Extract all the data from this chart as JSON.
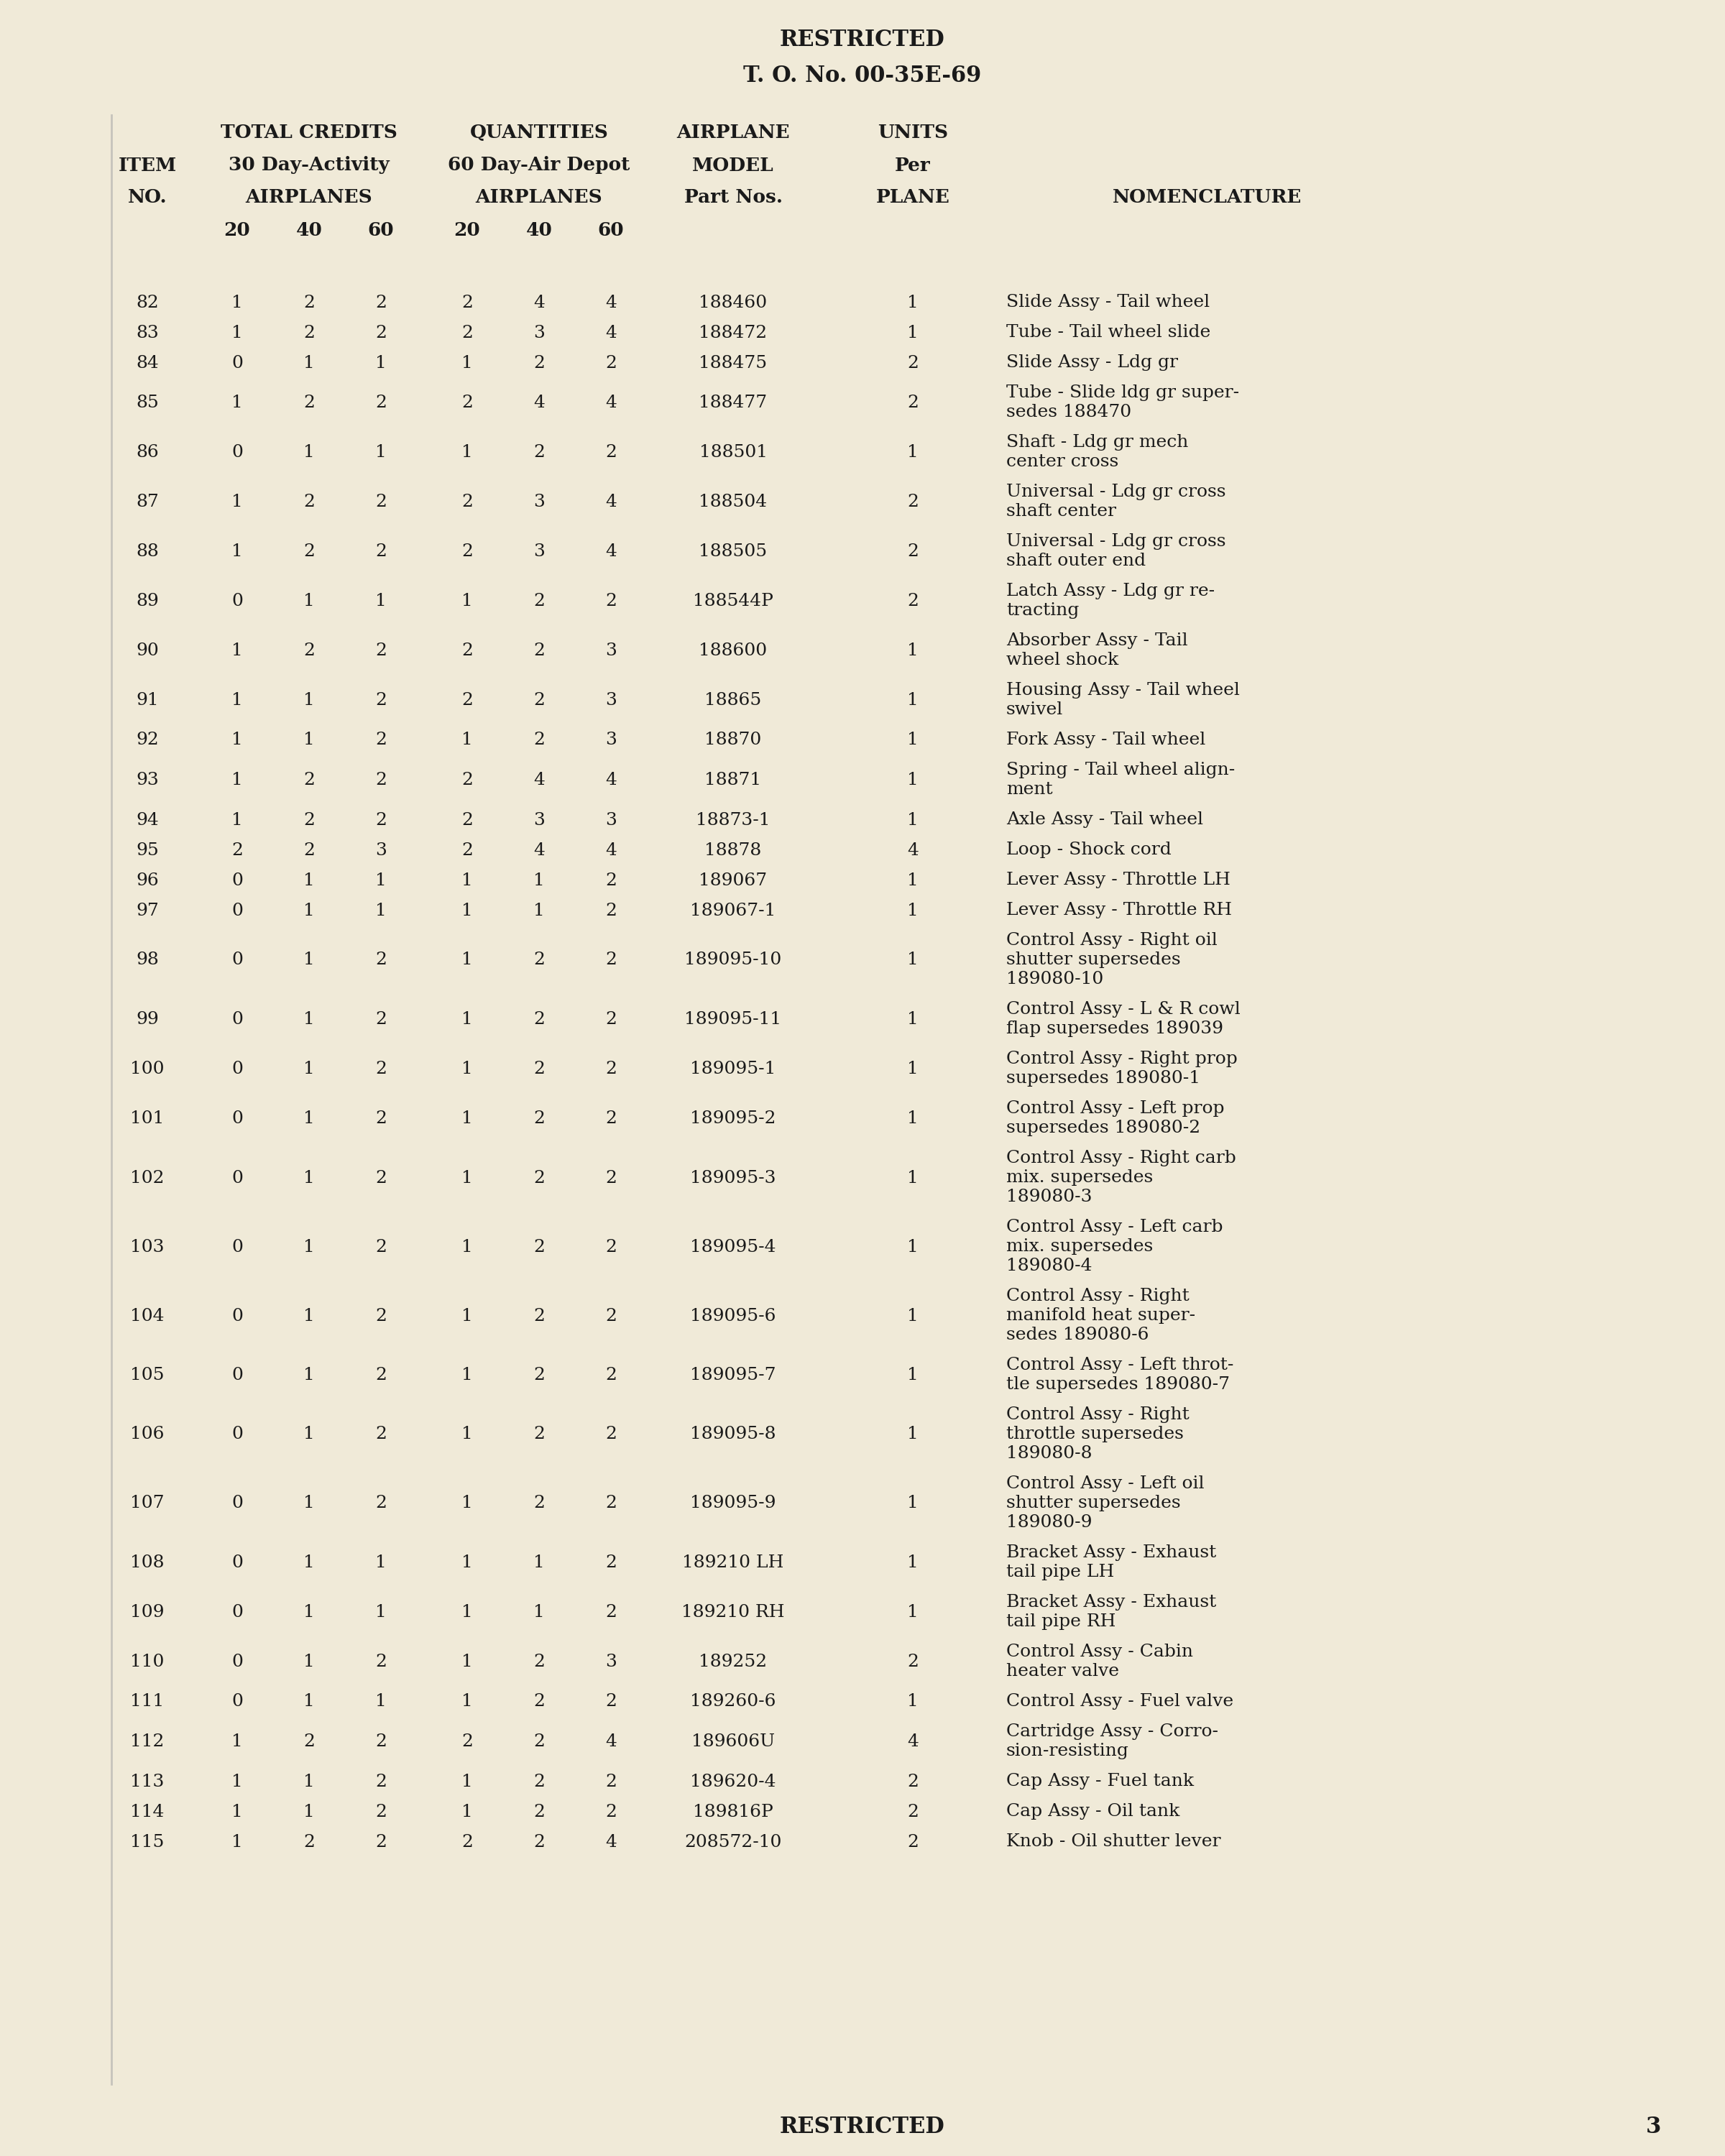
{
  "header_line1": "RESTRICTED",
  "header_line2": "T. O. No. 00-35E-69",
  "rows": [
    {
      "item": "82",
      "tc20": "1",
      "tc40": "2",
      "tc60": "2",
      "q20": "2",
      "q40": "4",
      "q60": "4",
      "part": "188460",
      "units": "1",
      "nomenclature": [
        "Slide Assy - Tail wheel"
      ]
    },
    {
      "item": "83",
      "tc20": "1",
      "tc40": "2",
      "tc60": "2",
      "q20": "2",
      "q40": "3",
      "q60": "4",
      "part": "188472",
      "units": "1",
      "nomenclature": [
        "Tube - Tail wheel slide"
      ]
    },
    {
      "item": "84",
      "tc20": "0",
      "tc40": "1",
      "tc60": "1",
      "q20": "1",
      "q40": "2",
      "q60": "2",
      "part": "188475",
      "units": "2",
      "nomenclature": [
        "Slide Assy - Ldg gr"
      ]
    },
    {
      "item": "85",
      "tc20": "1",
      "tc40": "2",
      "tc60": "2",
      "q20": "2",
      "q40": "4",
      "q60": "4",
      "part": "188477",
      "units": "2",
      "nomenclature": [
        "Tube - Slide ldg gr super-",
        "sedes 188470"
      ]
    },
    {
      "item": "86",
      "tc20": "0",
      "tc40": "1",
      "tc60": "1",
      "q20": "1",
      "q40": "2",
      "q60": "2",
      "part": "188501",
      "units": "1",
      "nomenclature": [
        "Shaft - Ldg gr mech",
        "center cross"
      ]
    },
    {
      "item": "87",
      "tc20": "1",
      "tc40": "2",
      "tc60": "2",
      "q20": "2",
      "q40": "3",
      "q60": "4",
      "part": "188504",
      "units": "2",
      "nomenclature": [
        "Universal - Ldg gr cross",
        "shaft center"
      ]
    },
    {
      "item": "88",
      "tc20": "1",
      "tc40": "2",
      "tc60": "2",
      "q20": "2",
      "q40": "3",
      "q60": "4",
      "part": "188505",
      "units": "2",
      "nomenclature": [
        "Universal - Ldg gr cross",
        "shaft outer end"
      ]
    },
    {
      "item": "89",
      "tc20": "0",
      "tc40": "1",
      "tc60": "1",
      "q20": "1",
      "q40": "2",
      "q60": "2",
      "part": "188544P",
      "units": "2",
      "nomenclature": [
        "Latch Assy - Ldg gr re-",
        "tracting"
      ]
    },
    {
      "item": "90",
      "tc20": "1",
      "tc40": "2",
      "tc60": "2",
      "q20": "2",
      "q40": "2",
      "q60": "3",
      "part": "188600",
      "units": "1",
      "nomenclature": [
        "Absorber Assy - Tail",
        "wheel shock"
      ]
    },
    {
      "item": "91",
      "tc20": "1",
      "tc40": "1",
      "tc60": "2",
      "q20": "2",
      "q40": "2",
      "q60": "3",
      "part": "18865",
      "units": "1",
      "nomenclature": [
        "Housing Assy - Tail wheel",
        "swivel"
      ]
    },
    {
      "item": "92",
      "tc20": "1",
      "tc40": "1",
      "tc60": "2",
      "q20": "1",
      "q40": "2",
      "q60": "3",
      "part": "18870",
      "units": "1",
      "nomenclature": [
        "Fork Assy - Tail wheel"
      ]
    },
    {
      "item": "93",
      "tc20": "1",
      "tc40": "2",
      "tc60": "2",
      "q20": "2",
      "q40": "4",
      "q60": "4",
      "part": "18871",
      "units": "1",
      "nomenclature": [
        "Spring - Tail wheel align-",
        "ment"
      ]
    },
    {
      "item": "94",
      "tc20": "1",
      "tc40": "2",
      "tc60": "2",
      "q20": "2",
      "q40": "3",
      "q60": "3",
      "part": "18873-1",
      "units": "1",
      "nomenclature": [
        "Axle Assy - Tail wheel"
      ]
    },
    {
      "item": "95",
      "tc20": "2",
      "tc40": "2",
      "tc60": "3",
      "q20": "2",
      "q40": "4",
      "q60": "4",
      "part": "18878",
      "units": "4",
      "nomenclature": [
        "Loop - Shock cord"
      ]
    },
    {
      "item": "96",
      "tc20": "0",
      "tc40": "1",
      "tc60": "1",
      "q20": "1",
      "q40": "1",
      "q60": "2",
      "part": "189067",
      "units": "1",
      "nomenclature": [
        "Lever Assy - Throttle LH"
      ]
    },
    {
      "item": "97",
      "tc20": "0",
      "tc40": "1",
      "tc60": "1",
      "q20": "1",
      "q40": "1",
      "q60": "2",
      "part": "189067-1",
      "units": "1",
      "nomenclature": [
        "Lever Assy - Throttle RH"
      ]
    },
    {
      "item": "98",
      "tc20": "0",
      "tc40": "1",
      "tc60": "2",
      "q20": "1",
      "q40": "2",
      "q60": "2",
      "part": "189095-10",
      "units": "1",
      "nomenclature": [
        "Control Assy - Right oil",
        "shutter supersedes",
        "189080-10"
      ]
    },
    {
      "item": "99",
      "tc20": "0",
      "tc40": "1",
      "tc60": "2",
      "q20": "1",
      "q40": "2",
      "q60": "2",
      "part": "189095-11",
      "units": "1",
      "nomenclature": [
        "Control Assy - L & R cowl",
        "flap supersedes 189039"
      ]
    },
    {
      "item": "100",
      "tc20": "0",
      "tc40": "1",
      "tc60": "2",
      "q20": "1",
      "q40": "2",
      "q60": "2",
      "part": "189095-1",
      "units": "1",
      "nomenclature": [
        "Control Assy - Right prop",
        "supersedes 189080-1"
      ]
    },
    {
      "item": "101",
      "tc20": "0",
      "tc40": "1",
      "tc60": "2",
      "q20": "1",
      "q40": "2",
      "q60": "2",
      "part": "189095-2",
      "units": "1",
      "nomenclature": [
        "Control Assy - Left prop",
        "supersedes 189080-2"
      ]
    },
    {
      "item": "102",
      "tc20": "0",
      "tc40": "1",
      "tc60": "2",
      "q20": "1",
      "q40": "2",
      "q60": "2",
      "part": "189095-3",
      "units": "1",
      "nomenclature": [
        "Control Assy - Right carb",
        "mix. supersedes",
        "189080-3"
      ]
    },
    {
      "item": "103",
      "tc20": "0",
      "tc40": "1",
      "tc60": "2",
      "q20": "1",
      "q40": "2",
      "q60": "2",
      "part": "189095-4",
      "units": "1",
      "nomenclature": [
        "Control Assy - Left carb",
        "mix. supersedes",
        "189080-4"
      ]
    },
    {
      "item": "104",
      "tc20": "0",
      "tc40": "1",
      "tc60": "2",
      "q20": "1",
      "q40": "2",
      "q60": "2",
      "part": "189095-6",
      "units": "1",
      "nomenclature": [
        "Control Assy - Right",
        "manifold heat super-",
        "sedes 189080-6"
      ]
    },
    {
      "item": "105",
      "tc20": "0",
      "tc40": "1",
      "tc60": "2",
      "q20": "1",
      "q40": "2",
      "q60": "2",
      "part": "189095-7",
      "units": "1",
      "nomenclature": [
        "Control Assy - Left throt-",
        "tle supersedes 189080-7"
      ]
    },
    {
      "item": "106",
      "tc20": "0",
      "tc40": "1",
      "tc60": "2",
      "q20": "1",
      "q40": "2",
      "q60": "2",
      "part": "189095-8",
      "units": "1",
      "nomenclature": [
        "Control Assy - Right",
        "throttle supersedes",
        "189080-8"
      ]
    },
    {
      "item": "107",
      "tc20": "0",
      "tc40": "1",
      "tc60": "2",
      "q20": "1",
      "q40": "2",
      "q60": "2",
      "part": "189095-9",
      "units": "1",
      "nomenclature": [
        "Control Assy - Left oil",
        "shutter supersedes",
        "189080-9"
      ]
    },
    {
      "item": "108",
      "tc20": "0",
      "tc40": "1",
      "tc60": "1",
      "q20": "1",
      "q40": "1",
      "q60": "2",
      "part": "189210 LH",
      "units": "1",
      "nomenclature": [
        "Bracket Assy - Exhaust",
        "tail pipe LH"
      ]
    },
    {
      "item": "109",
      "tc20": "0",
      "tc40": "1",
      "tc60": "1",
      "q20": "1",
      "q40": "1",
      "q60": "2",
      "part": "189210 RH",
      "units": "1",
      "nomenclature": [
        "Bracket Assy - Exhaust",
        "tail pipe RH"
      ]
    },
    {
      "item": "110",
      "tc20": "0",
      "tc40": "1",
      "tc60": "2",
      "q20": "1",
      "q40": "2",
      "q60": "3",
      "part": "189252",
      "units": "2",
      "nomenclature": [
        "Control Assy - Cabin",
        "heater valve"
      ]
    },
    {
      "item": "111",
      "tc20": "0",
      "tc40": "1",
      "tc60": "1",
      "q20": "1",
      "q40": "2",
      "q60": "2",
      "part": "189260-6",
      "units": "1",
      "nomenclature": [
        "Control Assy - Fuel valve"
      ]
    },
    {
      "item": "112",
      "tc20": "1",
      "tc40": "2",
      "tc60": "2",
      "q20": "2",
      "q40": "2",
      "q60": "4",
      "part": "189606U",
      "units": "4",
      "nomenclature": [
        "Cartridge Assy - Corro-",
        "sion-resisting"
      ]
    },
    {
      "item": "113",
      "tc20": "1",
      "tc40": "1",
      "tc60": "2",
      "q20": "1",
      "q40": "2",
      "q60": "2",
      "part": "189620-4",
      "units": "2",
      "nomenclature": [
        "Cap Assy - Fuel tank"
      ]
    },
    {
      "item": "114",
      "tc20": "1",
      "tc40": "1",
      "tc60": "2",
      "q20": "1",
      "q40": "2",
      "q60": "2",
      "part": "189816P",
      "units": "2",
      "nomenclature": [
        "Cap Assy - Oil tank"
      ]
    },
    {
      "item": "115",
      "tc20": "1",
      "tc40": "2",
      "tc60": "2",
      "q20": "2",
      "q40": "2",
      "q60": "4",
      "part": "208572-10",
      "units": "2",
      "nomenclature": [
        "Knob - Oil shutter lever"
      ]
    }
  ],
  "footer_restricted": "RESTRICTED",
  "page_number": "3",
  "bg_color": "#f0ead8",
  "text_color": "#1a1a1a"
}
